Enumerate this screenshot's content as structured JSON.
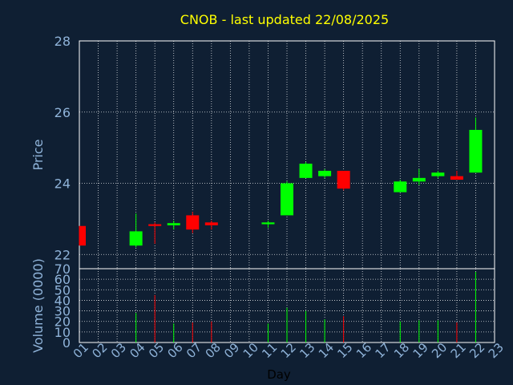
{
  "chart_data": {
    "type": "candlestick",
    "title": "CNOB - last updated 22/08/2025",
    "xlabel": "Day",
    "price_panel": {
      "ylabel": "Price",
      "ylim": [
        21.6,
        28
      ],
      "yticks": [
        22,
        24,
        26,
        28
      ]
    },
    "volume_panel": {
      "ylabel": "Volume (0000)",
      "ylim": [
        0,
        70
      ],
      "yticks": [
        0,
        10,
        20,
        30,
        40,
        50,
        60,
        70
      ]
    },
    "xlim": [
      1,
      23
    ],
    "xticks": [
      "01",
      "02",
      "03",
      "04",
      "05",
      "06",
      "07",
      "08",
      "09",
      "10",
      "11",
      "12",
      "13",
      "14",
      "15",
      "16",
      "17",
      "18",
      "19",
      "20",
      "21",
      "22",
      "23"
    ],
    "grid": true,
    "colors": {
      "background": "#0f1f33",
      "axis_text": "#8fb3d9",
      "title": "#ffff00",
      "up": "#00ff00",
      "down": "#ff0000",
      "grid": "#ffffff"
    },
    "candles": [
      {
        "day": 1,
        "open": 22.8,
        "high": 22.8,
        "low": 22.25,
        "close": 22.25,
        "volume": 0
      },
      {
        "day": 4,
        "open": 22.25,
        "high": 23.15,
        "low": 22.2,
        "close": 22.65,
        "volume": 28
      },
      {
        "day": 5,
        "open": 22.85,
        "high": 22.9,
        "low": 22.3,
        "close": 22.8,
        "volume": 45
      },
      {
        "day": 6,
        "open": 22.82,
        "high": 22.95,
        "low": 22.7,
        "close": 22.88,
        "volume": 18
      },
      {
        "day": 7,
        "open": 23.1,
        "high": 23.2,
        "low": 22.6,
        "close": 22.7,
        "volume": 19
      },
      {
        "day": 8,
        "open": 22.9,
        "high": 22.95,
        "low": 22.7,
        "close": 22.82,
        "volume": 20
      },
      {
        "day": 11,
        "open": 22.85,
        "high": 22.95,
        "low": 22.75,
        "close": 22.9,
        "volume": 18
      },
      {
        "day": 12,
        "open": 23.1,
        "high": 24.05,
        "low": 23.1,
        "close": 24.0,
        "volume": 33
      },
      {
        "day": 13,
        "open": 24.15,
        "high": 24.6,
        "low": 24.15,
        "close": 24.55,
        "volume": 30
      },
      {
        "day": 14,
        "open": 24.2,
        "high": 24.4,
        "low": 24.15,
        "close": 24.35,
        "volume": 22
      },
      {
        "day": 15,
        "open": 24.35,
        "high": 24.35,
        "low": 23.8,
        "close": 23.85,
        "volume": 25
      },
      {
        "day": 18,
        "open": 23.75,
        "high": 24.1,
        "low": 23.75,
        "close": 24.05,
        "volume": 20
      },
      {
        "day": 19,
        "open": 24.05,
        "high": 24.4,
        "low": 23.95,
        "close": 24.15,
        "volume": 21
      },
      {
        "day": 20,
        "open": 24.2,
        "high": 24.35,
        "low": 24.15,
        "close": 24.3,
        "volume": 21
      },
      {
        "day": 21,
        "open": 24.2,
        "high": 24.35,
        "low": 24.1,
        "close": 24.1,
        "volume": 19
      },
      {
        "day": 22,
        "open": 24.3,
        "high": 25.85,
        "low": 24.3,
        "close": 25.5,
        "volume": 67
      }
    ]
  }
}
